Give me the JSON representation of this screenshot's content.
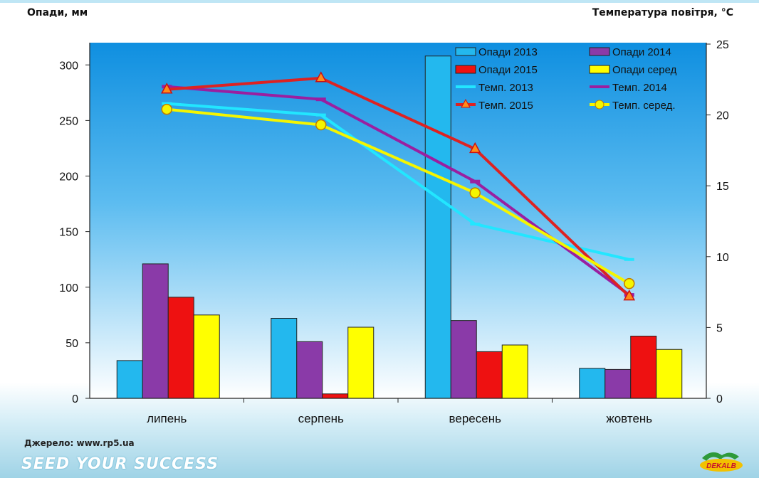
{
  "titles": {
    "left_axis": "Опади, мм",
    "right_axis": "Температура повітря, °С"
  },
  "source_text": "Джерело: www.rp5.ua",
  "brand_text": "SEED YOUR SUCCESS",
  "logo_text": "DEKALB",
  "chart_data": {
    "type": "bar",
    "categories": [
      "липень",
      "серпень",
      "вересень",
      "жовтень"
    ],
    "y_left": {
      "label": "Опади, мм",
      "lim": [
        0,
        320
      ],
      "ticks": [
        0,
        50,
        100,
        150,
        200,
        250,
        300
      ]
    },
    "y_right": {
      "label": "Температура повітря, °С",
      "lim": [
        0,
        25
      ],
      "ticks": [
        0,
        5,
        10,
        15,
        20,
        25
      ]
    },
    "bar_series": [
      {
        "name": "Опади 2013",
        "color": "#23b8ee",
        "values": [
          34,
          72,
          308,
          27
        ]
      },
      {
        "name": "Опади 2014",
        "color": "#8a3aa8",
        "values": [
          121,
          51,
          70,
          26
        ]
      },
      {
        "name": "Опади 2015",
        "color": "#ee1111",
        "values": [
          91,
          4,
          42,
          56
        ]
      },
      {
        "name": "Опади серед",
        "color": "#ffff00",
        "values": [
          75,
          64,
          48,
          44
        ]
      }
    ],
    "line_series": [
      {
        "name": "Темп. 2013",
        "color": "#22e6ff",
        "marker": "none",
        "values": [
          20.8,
          20,
          12.3,
          9.8
        ]
      },
      {
        "name": "Темп. 2014",
        "color": "#9a1fa0",
        "marker": "dash",
        "values": [
          22,
          21.1,
          15.3,
          7.3
        ]
      },
      {
        "name": "Темп. 2015",
        "color": "#dd2222",
        "marker": "triangle",
        "values": [
          21.8,
          22.6,
          17.6,
          7.2
        ]
      },
      {
        "name": "Темп. серед.",
        "color": "#f5f500",
        "marker": "circle",
        "values": [
          20.4,
          19.3,
          14.5,
          8.1
        ]
      }
    ],
    "legend": [
      "Опади 2013",
      "Опади 2014",
      "Опади 2015",
      "Опади серед",
      "Темп. 2013",
      "Темп. 2014",
      "Темп. 2015",
      "Темп. серед."
    ],
    "legend_position": "top-right",
    "grid": false
  }
}
